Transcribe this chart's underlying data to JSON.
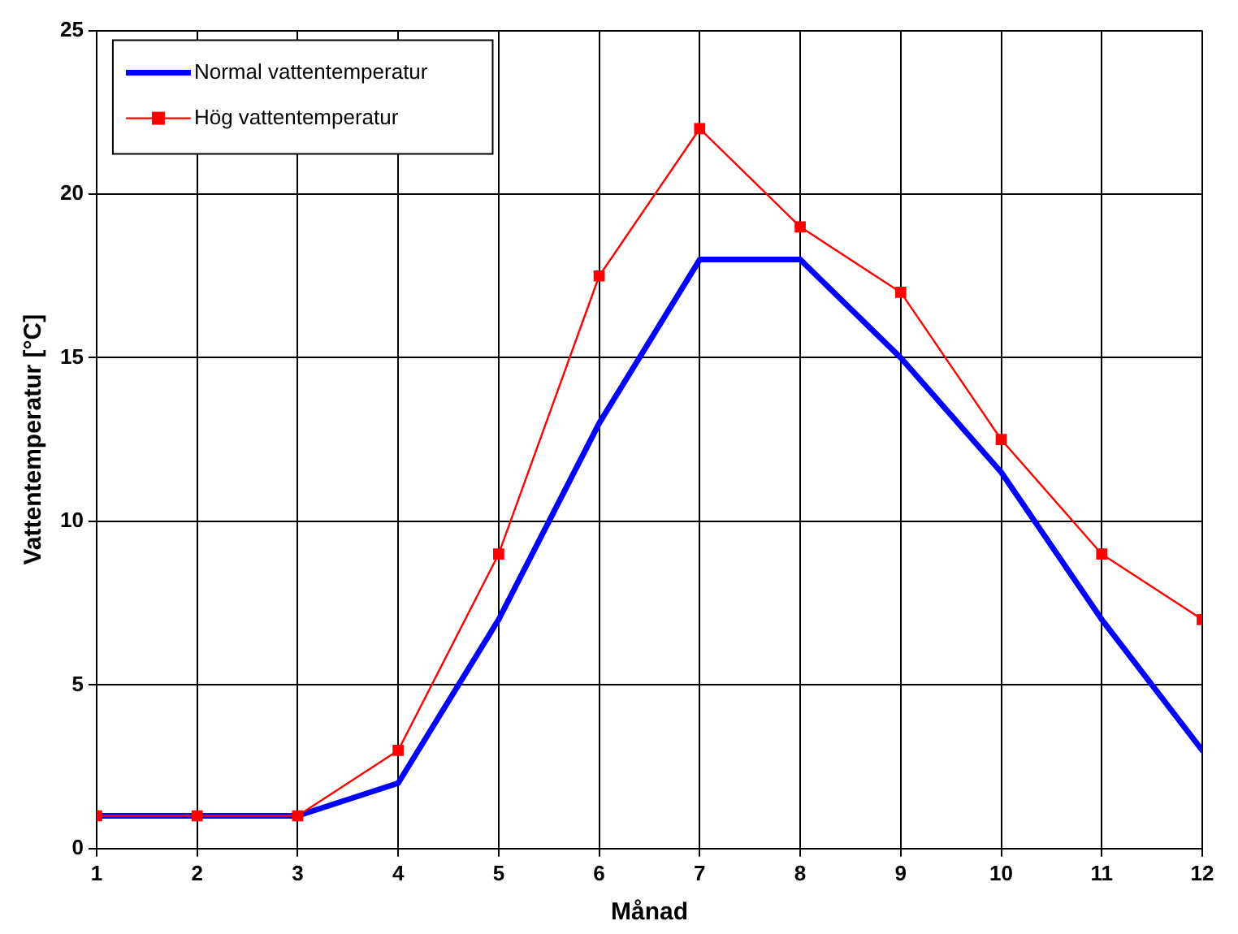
{
  "chart_data": {
    "type": "line",
    "xlabel": "Månad",
    "ylabel": "Vattentemperatur [°C]",
    "x": [
      1,
      2,
      3,
      4,
      5,
      6,
      7,
      8,
      9,
      10,
      11,
      12
    ],
    "series": [
      {
        "name": "Normal vattentemperatur",
        "color": "#0000ff",
        "marker": "none",
        "values": [
          1,
          1,
          1,
          2,
          7,
          13,
          18,
          18,
          15,
          11.5,
          7,
          3
        ]
      },
      {
        "name": "Hög vattentemperatur",
        "color": "#ff0000",
        "marker": "square",
        "values": [
          1,
          1,
          1,
          3,
          9,
          17.5,
          22,
          19,
          17,
          12.5,
          9,
          7
        ]
      }
    ],
    "xlim": [
      1,
      12
    ],
    "xticks": [
      1,
      2,
      3,
      4,
      5,
      6,
      7,
      8,
      9,
      10,
      11,
      12
    ],
    "ylim": [
      0,
      25
    ],
    "yticks": [
      0,
      5,
      10,
      15,
      20,
      25
    ],
    "grid": true,
    "legend": "top left",
    "line_style": "solid"
  }
}
